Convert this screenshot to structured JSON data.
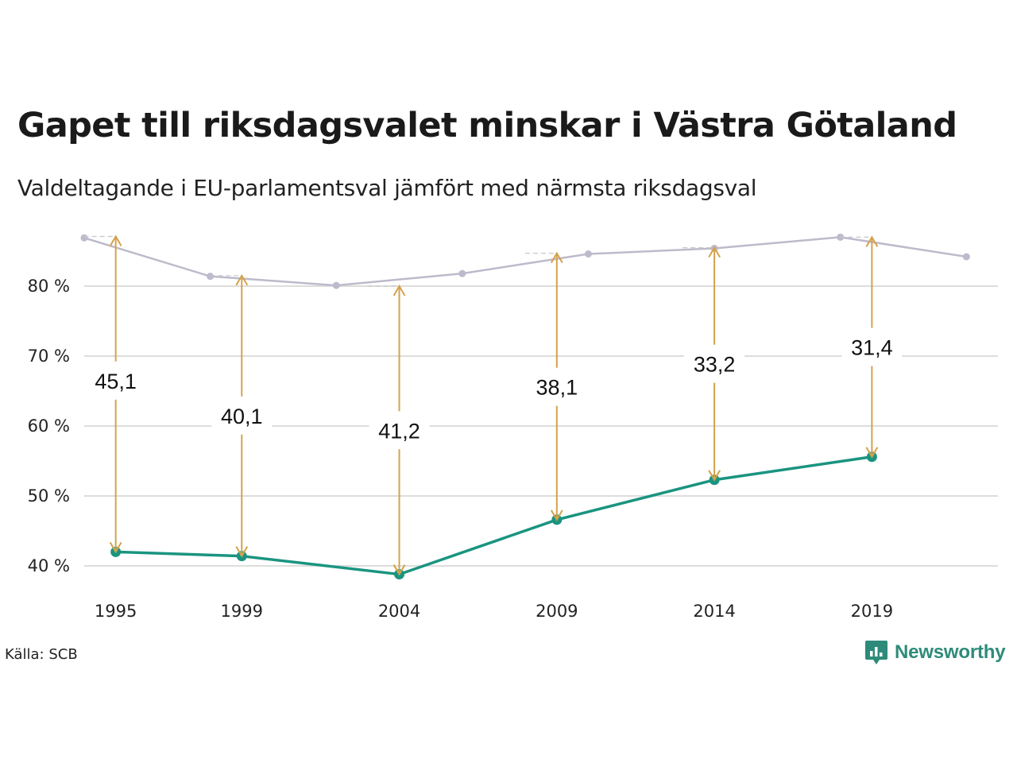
{
  "title": "Gapet till riksdagsvalet minskar i Västra Götaland",
  "subtitle": "Valdeltagande i EU-parlamentsval jämfört med närmsta riksdagsval",
  "source": "Källa: SCB",
  "brand": {
    "name": "Newsworthy",
    "icon": "chart-bubble-icon"
  },
  "colors": {
    "eu": "#1a9480",
    "riksdag": "#bdbacb",
    "gap_arrow": "#d4a24c",
    "grid": "#dddddd"
  },
  "chart_data": {
    "type": "line",
    "ylim": [
      35,
      90
    ],
    "yticks": [
      {
        "value": 40,
        "label": "40 %"
      },
      {
        "value": 50,
        "label": "50 %"
      },
      {
        "value": 60,
        "label": "60 %"
      },
      {
        "value": 70,
        "label": "70 %"
      },
      {
        "value": 80,
        "label": "80 %"
      }
    ],
    "xlim": [
      1994,
      2023
    ],
    "xticks": [
      1995,
      1999,
      2004,
      2009,
      2014,
      2019
    ],
    "grid": true,
    "series": [
      {
        "key": "riksdag",
        "x": [
          1994,
          1998,
          2002,
          2006,
          2010,
          2014,
          2018,
          2022
        ],
        "values": [
          86.9,
          81.4,
          80.1,
          81.8,
          84.6,
          85.4,
          87.0,
          84.2
        ]
      },
      {
        "key": "eu",
        "x": [
          1995,
          1999,
          2004,
          2009,
          2014,
          2019
        ],
        "values": [
          42.0,
          41.4,
          38.8,
          46.6,
          52.3,
          55.6
        ]
      }
    ],
    "gaps": [
      {
        "year": 1995,
        "top": 87.1,
        "bottom": 42.0,
        "label": "45,1",
        "label_at": 66.5
      },
      {
        "year": 1999,
        "top": 81.5,
        "bottom": 41.4,
        "label": "40,1",
        "label_at": 61.5
      },
      {
        "year": 2004,
        "top": 80.0,
        "bottom": 38.8,
        "label": "41,2",
        "label_at": 59.4
      },
      {
        "year": 2009,
        "top": 84.7,
        "bottom": 46.6,
        "label": "38,1",
        "label_at": 65.6
      },
      {
        "year": 2014,
        "top": 85.5,
        "bottom": 52.3,
        "label": "33,2",
        "label_at": 68.9
      },
      {
        "year": 2019,
        "top": 87.0,
        "bottom": 55.6,
        "label": "31,4",
        "label_at": 71.3
      }
    ]
  }
}
